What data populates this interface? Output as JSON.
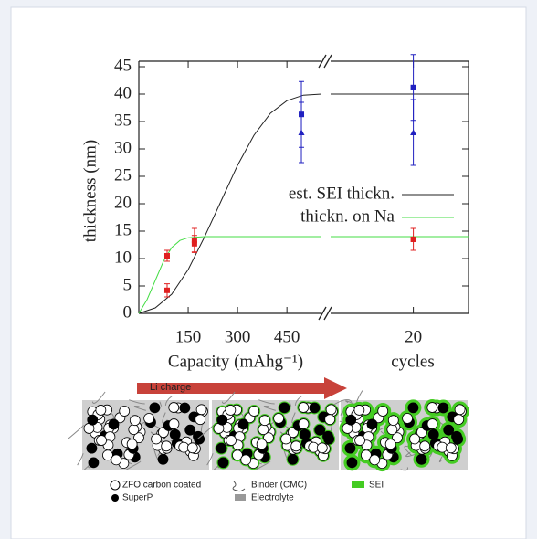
{
  "chart_data": [
    {
      "type": "line",
      "ylabel": "thickness (nm)",
      "xlabel": "Capacity (mAhg⁻¹)",
      "xlim": [
        0,
        555
      ],
      "ylim": [
        0,
        46
      ],
      "xticks": [
        150,
        300,
        450
      ],
      "yticks": [
        0,
        5,
        10,
        15,
        20,
        25,
        30,
        35,
        40,
        45
      ],
      "legend": "right",
      "series": [
        {
          "name": "est. SEI thickn.",
          "color": "#222222",
          "x": [
            0,
            50,
            100,
            150,
            200,
            250,
            300,
            350,
            400,
            450,
            500,
            555
          ],
          "values": [
            0,
            1,
            3.5,
            8,
            14,
            20.5,
            27,
            32.5,
            36.5,
            38.8,
            39.8,
            40
          ]
        },
        {
          "name": "thickn. on Na",
          "color": "#44dd44",
          "x": [
            0,
            25,
            50,
            75,
            100,
            125,
            150,
            200,
            555
          ],
          "values": [
            0,
            2.5,
            6,
            9.5,
            12,
            13.3,
            13.8,
            14,
            14
          ]
        },
        {
          "color": "#e02020",
          "marker": "square",
          "x": [
            86,
            86,
            169,
            169
          ],
          "values": [
            4.2,
            10.5,
            13.3,
            12.7
          ],
          "errors": [
            1.2,
            1,
            2.2,
            1.5
          ]
        },
        {
          "color": "#2020c0",
          "marker": "square",
          "x": [
            494
          ],
          "values": [
            36.3
          ],
          "errors": [
            6
          ]
        },
        {
          "color": "#2020c0",
          "marker": "triangle",
          "x": [
            494
          ],
          "values": [
            33
          ],
          "errors": [
            5.5
          ]
        }
      ]
    },
    {
      "type": "line",
      "xlabel": "cycles",
      "xlim": [
        5,
        30
      ],
      "ylim": [
        0,
        46
      ],
      "xticks": [
        20
      ],
      "yticks": [
        0,
        5,
        10,
        15,
        20,
        25,
        30,
        35,
        40,
        45
      ],
      "series": [
        {
          "color": "#222222",
          "x": [
            5,
            30
          ],
          "values": [
            40,
            40
          ]
        },
        {
          "color": "#44dd44",
          "x": [
            5,
            30
          ],
          "values": [
            14,
            14
          ]
        },
        {
          "color": "#e02020",
          "marker": "square",
          "x": [
            20
          ],
          "values": [
            13.5
          ],
          "errors": [
            2
          ]
        },
        {
          "color": "#2020c0",
          "marker": "square",
          "x": [
            20
          ],
          "values": [
            41.2
          ],
          "errors": [
            6
          ]
        },
        {
          "color": "#2020c0",
          "marker": "triangle",
          "x": [
            20
          ],
          "values": [
            33
          ],
          "errors": [
            6
          ]
        }
      ]
    }
  ],
  "illustration": {
    "arrow_label": "Li charge",
    "legend": [
      "ZFO carbon coated",
      "SuperP",
      "Binder (CMC)",
      "Electrolyte",
      "SEI"
    ]
  }
}
